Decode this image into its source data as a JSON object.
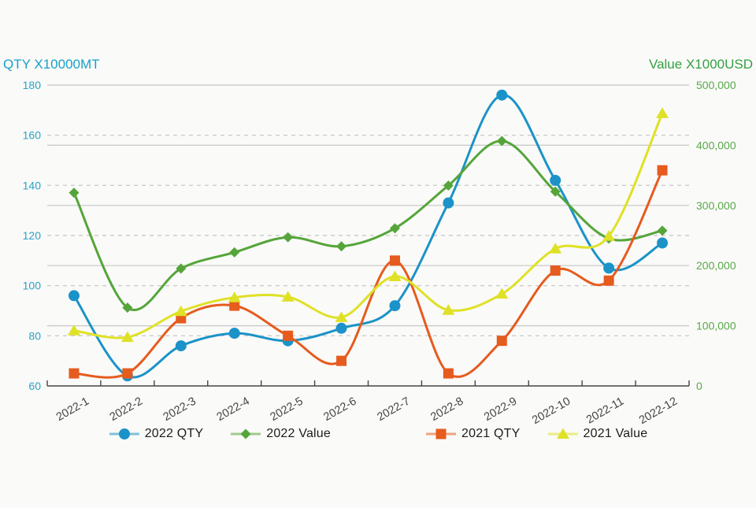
{
  "chart_data": {
    "type": "line",
    "title_left": "QTY X10000MT",
    "title_right": "Value X1000USD",
    "title_left_color": "#189fca",
    "title_right_color": "#35a044",
    "categories": [
      "2022-1",
      "2022-2",
      "2022-3",
      "2022-4",
      "2022-5",
      "2022-6",
      "2022-7",
      "2022-8",
      "2022-9",
      "2022-10",
      "2022-11",
      "2022-12"
    ],
    "series": [
      {
        "name": "2022 QTY",
        "axis": "left",
        "marker": "circle",
        "color": "#1b93c8",
        "values": [
          96,
          64,
          76,
          81,
          78,
          83,
          92,
          133,
          176,
          142,
          107,
          117
        ]
      },
      {
        "name": "2022 Value",
        "axis": "right",
        "marker": "diamond",
        "color": "#55a53a",
        "values": [
          321000,
          130000,
          195000,
          222000,
          247000,
          232000,
          262000,
          333000,
          407000,
          323000,
          245000,
          258000
        ]
      },
      {
        "name": "2021 QTY",
        "axis": "left",
        "marker": "square",
        "color": "#e65b1e",
        "values": [
          65,
          65,
          87,
          92,
          80,
          70,
          110,
          65,
          78,
          106,
          102,
          146
        ]
      },
      {
        "name": "2021 Value",
        "axis": "right",
        "marker": "triangle",
        "color": "#dfe126",
        "values": [
          92000,
          81000,
          124000,
          147000,
          148000,
          114000,
          182000,
          126000,
          153000,
          228000,
          249000,
          453000
        ]
      }
    ],
    "left_axis": {
      "min": 60,
      "max": 180,
      "step": 20,
      "color": "#2aa3c6",
      "tick_labels": [
        "60",
        "80",
        "100",
        "120",
        "140",
        "160",
        "180"
      ]
    },
    "right_axis": {
      "min": 0,
      "max": 500000,
      "step": 100000,
      "color": "#5aa849",
      "tick_labels": [
        "0",
        "100,000",
        "200,000",
        "300,000",
        "400,000",
        "500,000"
      ]
    },
    "x_axis": {
      "label_color": "#444444",
      "axis_color": "#444444",
      "label_angle": -30
    },
    "grid": {
      "solid_color": "#c6c6c6",
      "dashed_color": "#cccccc",
      "legend_position": "bottom"
    }
  },
  "legend_line_opacity": "0.55"
}
